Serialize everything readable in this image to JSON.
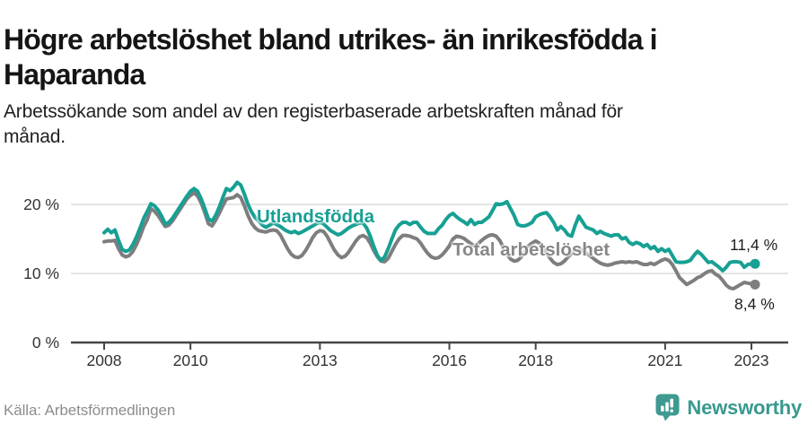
{
  "header": {
    "title_line1": "Högre arbetslöshet bland utrikes- än inrikesfödda i",
    "title_line2": "Haparanda",
    "subtitle_line1": "Arbetssökande som andel av den registerbaserade arbetskraften månad för",
    "subtitle_line2": "månad."
  },
  "footer": {
    "source": "Källa: Arbetsförmedlingen",
    "brand": "Newsworthy"
  },
  "colors": {
    "teal": "#17a094",
    "gray": "#7e7e7e",
    "gray_label": "#878787",
    "grid": "#e4e4e4",
    "axis": "#454545",
    "tick_text": "#333333",
    "end_label_text": "#1d1d1d",
    "brand_teal": "#38998f",
    "background": "#ffffff"
  },
  "chart_data": {
    "type": "line",
    "title": "Högre arbetslöshet bland utrikes- än inrikesfödda i Haparanda",
    "subtitle": "Arbetssökande som andel av den registerbaserade arbetskraften månad för månad.",
    "x_start": "2008-01",
    "x_end": "2023-02",
    "x_unit": "month",
    "ylim": [
      0,
      24
    ],
    "grid": "horizontal",
    "legend": "inline-labels",
    "yticks": [
      {
        "value": 0,
        "label": "0 %"
      },
      {
        "value": 10,
        "label": "10 %"
      },
      {
        "value": 20,
        "label": "20 %"
      }
    ],
    "xticks": [
      {
        "label": "2008",
        "month_index": 0
      },
      {
        "label": "2010",
        "month_index": 24
      },
      {
        "label": "2013",
        "month_index": 60
      },
      {
        "label": "2016",
        "month_index": 96
      },
      {
        "label": "2018",
        "month_index": 120
      },
      {
        "label": "2021",
        "month_index": 156
      },
      {
        "label": "2023",
        "month_index": 180
      }
    ],
    "series": [
      {
        "name": "Utlandsfödda",
        "color": "#17a094",
        "end_label": "11,4 %",
        "end_value": 11.4,
        "values": [
          15.9,
          16.4,
          15.9,
          16.3,
          14.8,
          13.5,
          13.2,
          13.4,
          14.2,
          15.3,
          16.6,
          18.0,
          19.0,
          20.1,
          19.8,
          19.2,
          18.3,
          17.2,
          17.4,
          18.0,
          18.8,
          19.6,
          20.4,
          21.2,
          21.9,
          22.3,
          21.9,
          20.8,
          19.4,
          17.9,
          17.6,
          18.4,
          19.6,
          21.0,
          22.3,
          22.0,
          22.5,
          23.2,
          22.8,
          21.5,
          20.0,
          18.9,
          18.1,
          17.6,
          17.0,
          16.7,
          17.0,
          17.3,
          17.1,
          16.8,
          16.4,
          16.1,
          15.9,
          16.1,
          15.8,
          16.0,
          16.3,
          16.6,
          16.9,
          17.2,
          17.4,
          17.2,
          16.7,
          16.2,
          15.9,
          15.6,
          15.8,
          16.2,
          16.6,
          16.9,
          17.1,
          17.3,
          17.3,
          16.6,
          15.4,
          13.9,
          12.6,
          11.9,
          12.4,
          13.6,
          15.0,
          16.3,
          17.0,
          17.4,
          17.4,
          17.1,
          17.4,
          17.4,
          16.7,
          16.1,
          15.8,
          15.8,
          15.8,
          16.5,
          17.0,
          17.8,
          18.4,
          18.7,
          18.2,
          17.8,
          17.5,
          17.1,
          17.8,
          17.1,
          17.4,
          17.4,
          17.8,
          18.2,
          19.1,
          20.1,
          20.0,
          20.1,
          20.4,
          19.4,
          18.4,
          17.1,
          16.9,
          16.9,
          17.1,
          17.4,
          18.2,
          18.5,
          18.7,
          18.8,
          18.2,
          17.4,
          16.3,
          16.8,
          16.3,
          15.6,
          15.4,
          17.0,
          18.3,
          17.5,
          16.7,
          16.5,
          16.3,
          15.8,
          16.1,
          15.8,
          15.6,
          15.4,
          15.6,
          15.6,
          15.0,
          15.2,
          14.5,
          14.2,
          14.5,
          14.3,
          13.9,
          14.2,
          13.6,
          13.9,
          13.2,
          13.6,
          13.2,
          13.5,
          12.6,
          11.7,
          11.6,
          11.6,
          11.7,
          11.9,
          12.6,
          13.2,
          12.8,
          12.2,
          11.6,
          11.7,
          11.3,
          10.9,
          10.4,
          10.9,
          11.6,
          11.7,
          11.7,
          11.6,
          10.9,
          11.3,
          11.4,
          11.4
        ]
      },
      {
        "name": "Total arbetslöshet",
        "color": "#7e7e7e",
        "end_label": "8,4 %",
        "end_value": 8.4,
        "values": [
          14.6,
          14.7,
          14.7,
          14.8,
          13.6,
          12.7,
          12.4,
          12.6,
          13.2,
          14.2,
          15.4,
          16.8,
          17.8,
          19.4,
          19.0,
          18.4,
          17.6,
          16.8,
          17.0,
          17.6,
          18.4,
          19.2,
          20.0,
          20.8,
          21.3,
          21.7,
          21.2,
          20.2,
          18.8,
          17.2,
          16.9,
          17.7,
          18.7,
          19.8,
          20.8,
          20.9,
          21.0,
          21.4,
          21.0,
          19.8,
          18.4,
          17.3,
          16.6,
          16.2,
          16.1,
          16.0,
          16.2,
          16.3,
          16.2,
          15.6,
          14.6,
          13.6,
          12.8,
          12.4,
          12.3,
          12.6,
          13.3,
          14.2,
          15.2,
          15.9,
          16.2,
          16.1,
          15.4,
          14.4,
          13.4,
          12.7,
          12.3,
          12.5,
          13.1,
          13.9,
          14.7,
          15.3,
          15.5,
          15.2,
          14.4,
          13.3,
          12.4,
          11.8,
          11.7,
          12.2,
          13.2,
          14.2,
          15.0,
          15.5,
          15.5,
          15.4,
          15.2,
          15.0,
          14.4,
          13.6,
          12.9,
          12.4,
          12.2,
          12.3,
          12.7,
          13.3,
          14.0,
          15.0,
          15.4,
          15.3,
          15.1,
          14.7,
          14.3,
          14.0,
          14.3,
          14.8,
          15.2,
          15.5,
          15.6,
          15.4,
          14.8,
          13.8,
          12.8,
          12.1,
          11.8,
          11.9,
          12.4,
          13.2,
          14.0,
          14.4,
          14.7,
          14.4,
          13.8,
          13.0,
          12.2,
          11.6,
          11.3,
          11.4,
          11.8,
          12.4,
          12.9,
          13.3,
          13.5,
          13.4,
          13.0,
          12.6,
          12.2,
          11.8,
          11.5,
          11.3,
          11.2,
          11.3,
          11.5,
          11.6,
          11.7,
          11.6,
          11.7,
          11.6,
          11.7,
          11.5,
          11.3,
          11.3,
          11.5,
          11.3,
          11.6,
          11.9,
          12.1,
          11.9,
          11.3,
          10.4,
          9.4,
          8.9,
          8.4,
          8.7,
          9.0,
          9.4,
          9.6,
          10.0,
          10.3,
          10.4,
          9.9,
          9.6,
          9.0,
          8.3,
          7.9,
          7.8,
          8.1,
          8.4,
          8.7,
          8.6,
          8.5,
          8.4
        ]
      }
    ]
  }
}
